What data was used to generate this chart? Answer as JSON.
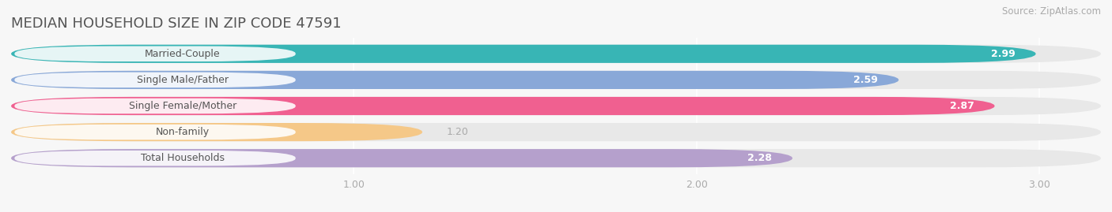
{
  "title": "MEDIAN HOUSEHOLD SIZE IN ZIP CODE 47591",
  "source": "Source: ZipAtlas.com",
  "categories": [
    "Married-Couple",
    "Single Male/Father",
    "Single Female/Mother",
    "Non-family",
    "Total Households"
  ],
  "values": [
    2.99,
    2.59,
    2.87,
    1.2,
    2.28
  ],
  "bar_colors": [
    "#38b5b5",
    "#89a8d8",
    "#f06090",
    "#f5c888",
    "#b5a0cc"
  ],
  "label_text_color": "#555555",
  "xlabel": "",
  "ylabel": "",
  "xmin": 0,
  "xmax": 3.18,
  "xticks": [
    1.0,
    2.0,
    3.0
  ],
  "background_color": "#f7f7f7",
  "bar_bg_color": "#e8e8e8",
  "title_fontsize": 13,
  "label_fontsize": 9,
  "value_fontsize": 9,
  "tick_fontsize": 9,
  "source_fontsize": 8.5
}
